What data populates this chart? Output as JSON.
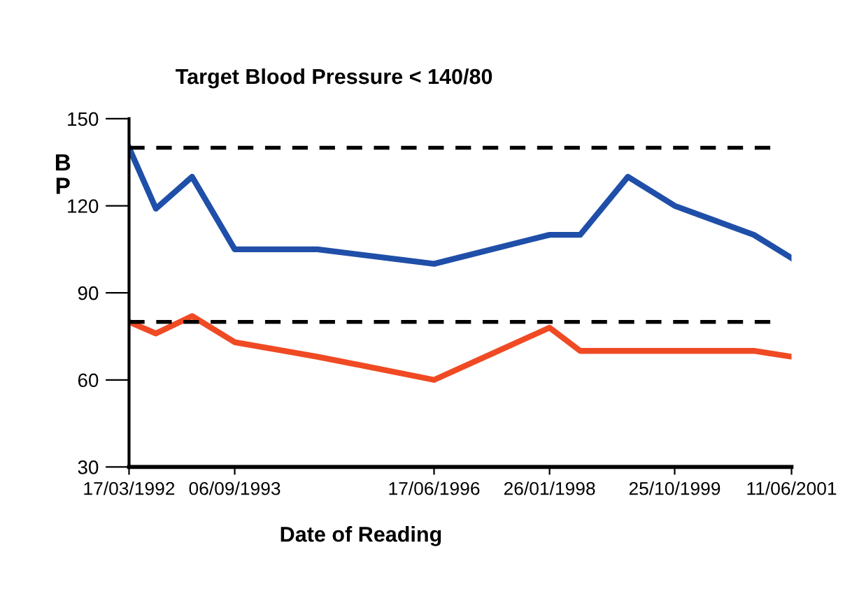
{
  "chart_data": {
    "type": "line",
    "title": "Target Blood Pressure < 140/80",
    "xlabel": "Date of Reading",
    "ylabel": "BP",
    "x": [
      "1992-03-17",
      "1992-08-01",
      "1993-02-01",
      "1993-09-06",
      "1994-11-01",
      "1996-06-17",
      "1998-01-26",
      "1998-07-01",
      "1999-03-01",
      "1999-10-25",
      "2000-12-01",
      "2001-06-11"
    ],
    "series": [
      {
        "color": "#1f4fa8",
        "values": [
          140,
          119,
          130,
          105,
          105,
          100,
          110,
          110,
          130,
          120,
          110,
          102
        ]
      },
      {
        "color": "#f04a24",
        "values": [
          80,
          76,
          82,
          73,
          68,
          60,
          78,
          70,
          70,
          70,
          70,
          68
        ]
      }
    ],
    "xlim": [
      "1992-03-17",
      "2001-06-11"
    ],
    "xticks": [
      {
        "value": "1992-03-17",
        "label": "17/03/1992"
      },
      {
        "value": "1993-09-06",
        "label": "06/09/1993"
      },
      {
        "value": "1996-06-17",
        "label": "17/06/1996"
      },
      {
        "value": "1998-01-26",
        "label": "26/01/1998"
      },
      {
        "value": "1999-10-25",
        "label": "25/10/1999"
      },
      {
        "value": "2001-06-11",
        "label": "11/06/2001"
      }
    ],
    "ylim": [
      30,
      150
    ],
    "yticks": [
      30,
      60,
      90,
      120,
      150
    ],
    "ref_lines": [
      {
        "axis": "y",
        "value": 140,
        "color": "#000000",
        "line_style": "dashed"
      },
      {
        "axis": "y",
        "value": 80,
        "color": "#000000",
        "line_style": "dashed"
      }
    ],
    "grid": false,
    "legend": false
  }
}
